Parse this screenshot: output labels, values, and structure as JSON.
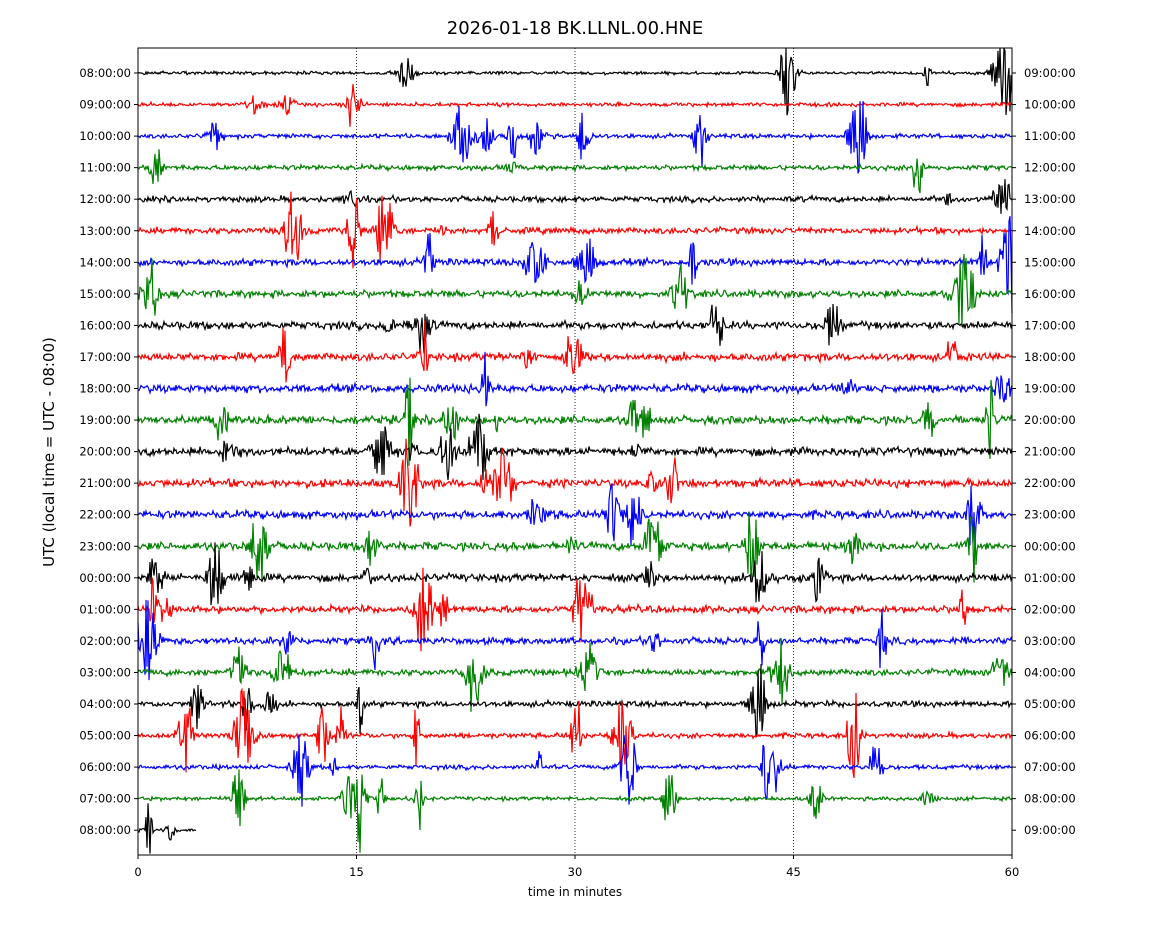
{
  "chart_data": {
    "type": "line",
    "title": "2026-01-18 BK.LLNL.00.HNE",
    "xlabel": "time in minutes",
    "ylabel": "UTC (local time = UTC - 08:00)",
    "xlim": [
      0,
      60
    ],
    "xticks": [
      0,
      15,
      30,
      45,
      60
    ],
    "xgrid_dotted": [
      15,
      30,
      45
    ],
    "trace_colors": [
      "#000000",
      "#ff0000",
      "#0000ff",
      "#008000"
    ],
    "left_labels": [
      "08:00:00",
      "09:00:00",
      "10:00:00",
      "11:00:00",
      "12:00:00",
      "13:00:00",
      "14:00:00",
      "15:00:00",
      "16:00:00",
      "17:00:00",
      "18:00:00",
      "19:00:00",
      "20:00:00",
      "21:00:00",
      "22:00:00",
      "23:00:00",
      "00:00:00",
      "01:00:00",
      "02:00:00",
      "03:00:00",
      "04:00:00",
      "05:00:00",
      "06:00:00",
      "07:00:00",
      "08:00:00"
    ],
    "right_labels": [
      "09:00:00",
      "10:00:00",
      "11:00:00",
      "12:00:00",
      "13:00:00",
      "14:00:00",
      "15:00:00",
      "16:00:00",
      "17:00:00",
      "18:00:00",
      "19:00:00",
      "20:00:00",
      "21:00:00",
      "22:00:00",
      "23:00:00",
      "00:00:00",
      "01:00:00",
      "02:00:00",
      "03:00:00",
      "04:00:00",
      "05:00:00",
      "06:00:00",
      "07:00:00",
      "08:00:00",
      "09:00:00"
    ],
    "last_trace_end_minute": 4
  }
}
